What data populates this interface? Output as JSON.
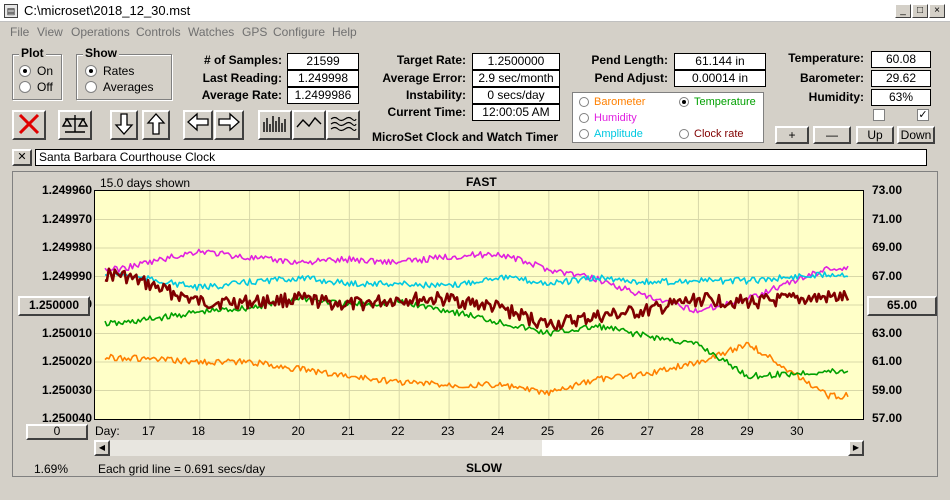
{
  "window": {
    "title": "C:\\microset\\2018_12_30.mst"
  },
  "menu": [
    "File",
    "View",
    "Operations",
    "Controls",
    "Watches",
    "GPS",
    "Configure",
    "Help"
  ],
  "plot_group": {
    "title": "Plot",
    "on": "On",
    "off": "Off"
  },
  "show_group": {
    "title": "Show",
    "rates": "Rates",
    "averages": "Averages"
  },
  "stats": {
    "samples_label": "# of Samples:",
    "samples": "21599",
    "last_label": "Last Reading:",
    "last": "1.249998",
    "avg_label": "Average Rate:",
    "avg": "1.2499986",
    "target_label": "Target Rate:",
    "target": "1.2500000",
    "avgerr_label": "Average Error:",
    "avgerr": "2.9 sec/month",
    "instab_label": "Instability:",
    "instab": "0 secs/day",
    "time_label": "Current Time:",
    "time": "12:00:05 AM",
    "pendlen_label": "Pend Length:",
    "pendlen": "61.144 in",
    "pendadj_label": "Pend Adjust:",
    "pendadj": "0.00014 in",
    "temp_label": "Temperature:",
    "temp": "60.08",
    "baro_label": "Barometer:",
    "baro": "29.62",
    "hum_label": "Humidity:",
    "hum": "63%"
  },
  "app_title": "MicroSet Clock and Watch Timer",
  "sources": {
    "barometer": "Barometer",
    "temperature": "Temperature",
    "humidity": "Humidity",
    "amplitude": "Amplitude",
    "clockrate": "Clock rate"
  },
  "colors": {
    "barometer": "#ff8000",
    "temperature": "#00a000",
    "humidity": "#e020e0",
    "amplitude": "#00c8e0",
    "clockrate": "#800000",
    "plot_bg": "#ffffc8"
  },
  "small_buttons": {
    "plus": "+",
    "minus": "—",
    "up": "Up",
    "down": "Down"
  },
  "description": "Santa Barbara Courthouse Clock",
  "chart": {
    "days_shown": "15.0 days shown",
    "top_label": "FAST",
    "bottom_label": "SLOW",
    "grid_note": "Each grid line = 0.691 secs/day",
    "percent": "1.69%",
    "left_center_btn": "1.250000",
    "right_center_btn": "65.00",
    "bottom_btn": "0",
    "day_prefix": "Day:"
  },
  "chart_data": {
    "type": "line",
    "x_label": "Day",
    "x": [
      17,
      18,
      19,
      20,
      21,
      22,
      23,
      24,
      25,
      26,
      27,
      28,
      29,
      30
    ],
    "left_ticks": [
      "1.249960",
      "1.249970",
      "1.249980",
      "1.249990",
      "1.250000",
      "1.250010",
      "1.250020",
      "1.250030",
      "1.250040"
    ],
    "right_ticks": [
      "73.00",
      "71.00",
      "69.00",
      "67.00",
      "65.00",
      "63.00",
      "61.00",
      "59.00",
      "57.00"
    ],
    "ylim_left": [
      1.24996,
      1.25004
    ],
    "ylim_right": [
      57,
      73
    ],
    "series": [
      {
        "name": "Clock rate",
        "color": "#800000",
        "width": 2.6,
        "values": [
          1.249993,
          1.249999,
          1.249999,
          1.249998,
          1.25,
          1.249998,
          1.249998,
          1.250001,
          1.250007,
          1.250004,
          1.250002,
          1.249998,
          1.249999,
          1.249998
        ]
      },
      {
        "name": "Temperature",
        "color": "#00a000",
        "width": 1.6,
        "values": [
          64.0,
          64.5,
          64.8,
          65.5,
          65.0,
          65.2,
          64.6,
          63.8,
          63.0,
          63.5,
          62.8,
          62.2,
          60.0,
          60.2
        ]
      },
      {
        "name": "Humidity",
        "color": "#e020e0",
        "width": 1.6,
        "values": [
          68.0,
          68.8,
          68.3,
          68.0,
          68.2,
          68.0,
          68.4,
          68.6,
          67.5,
          66.8,
          65.5,
          64.6,
          65.5,
          66.8
        ]
      },
      {
        "name": "Amplitude",
        "color": "#00c8e0",
        "width": 1.6,
        "values": [
          66.8,
          66.2,
          66.6,
          66.9,
          66.5,
          66.5,
          66.3,
          67.0,
          66.5,
          66.9,
          66.6,
          66.7,
          66.7,
          67.0
        ]
      },
      {
        "name": "Barometer",
        "color": "#ff8000",
        "width": 1.6,
        "values": [
          61.2,
          61.0,
          61.0,
          60.5,
          60.0,
          59.6,
          59.4,
          59.4,
          58.8,
          59.8,
          60.2,
          61.0,
          62.3,
          60.0
        ]
      }
    ]
  }
}
